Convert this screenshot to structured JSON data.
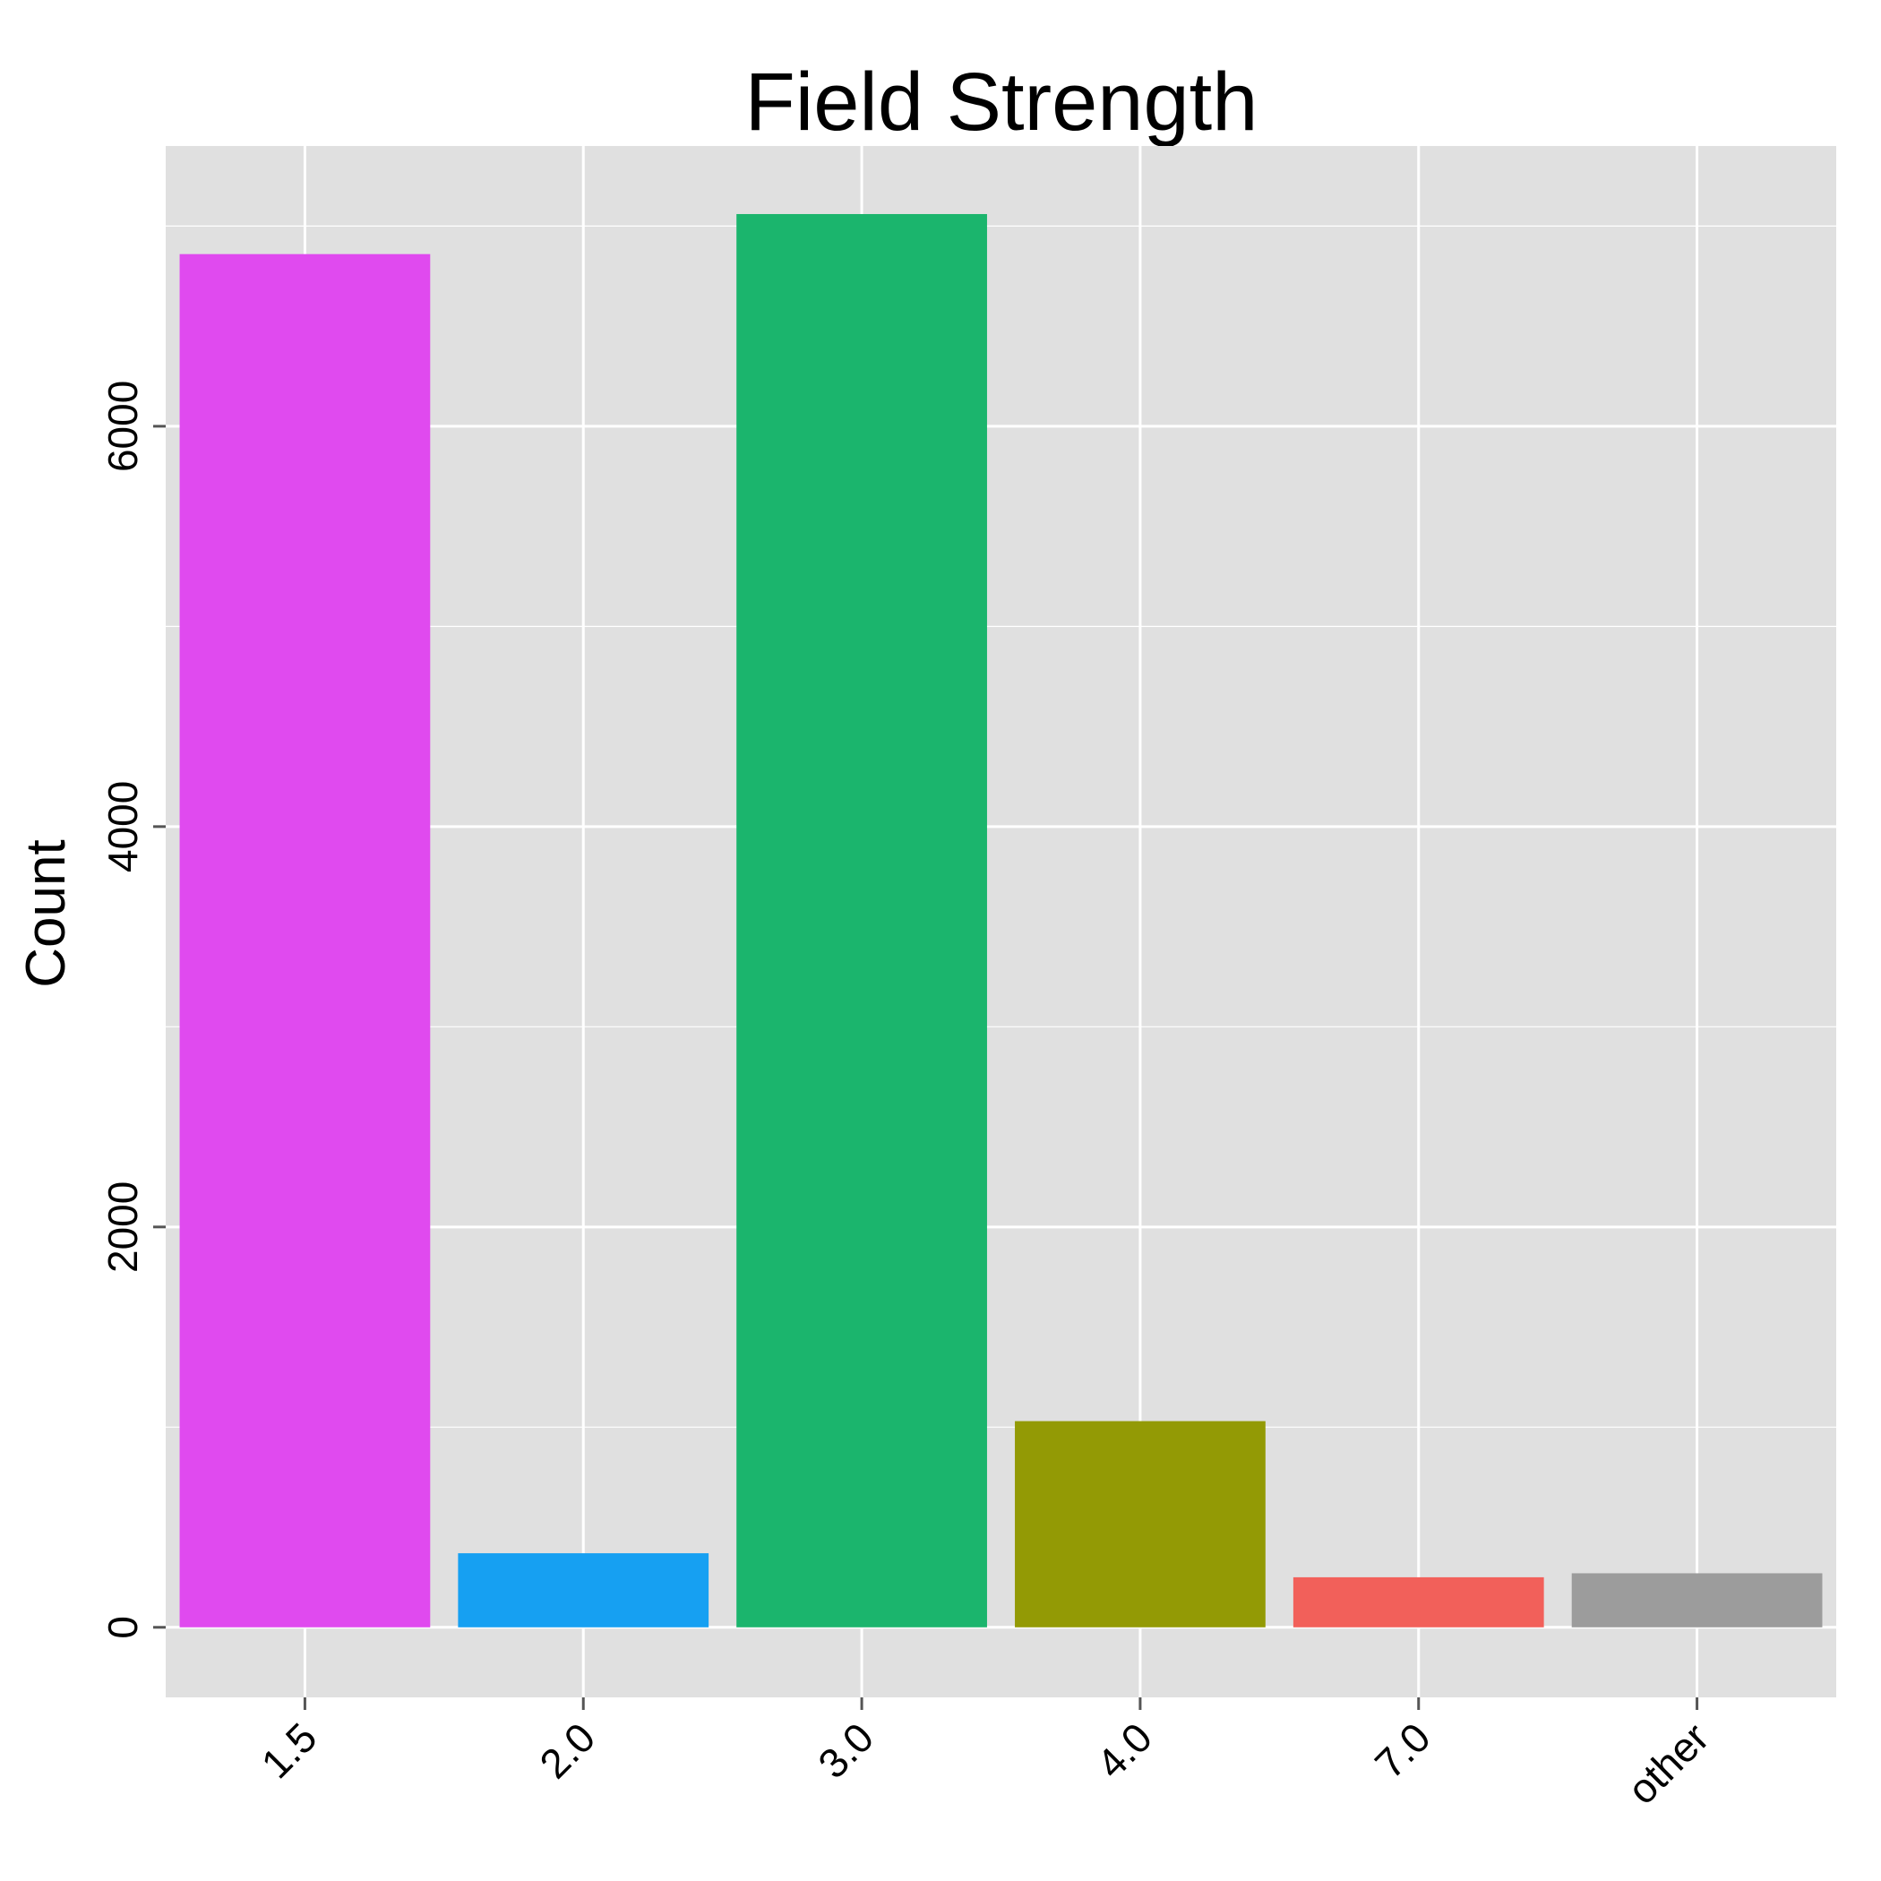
{
  "chart_data": {
    "type": "bar",
    "title": "Field Strength",
    "xlabel": "",
    "ylabel": "Count",
    "categories": [
      "1.5",
      "2.0",
      "3.0",
      "4.0",
      "7.0",
      "other"
    ],
    "values": [
      6860,
      370,
      7060,
      1030,
      250,
      270
    ],
    "colors": [
      "#E04AEF",
      "#16A0F2",
      "#1BB56D",
      "#939A05",
      "#F2605A",
      "#9C9C9C"
    ],
    "ylim": [
      -350,
      7400
    ],
    "yticks": [
      0,
      2000,
      4000,
      6000
    ],
    "ytick_labels": [
      "0",
      "2000",
      "4000",
      "6000"
    ],
    "grid": true,
    "panel_background": "#E0E0E0",
    "grid_color": "#FFFFFF"
  }
}
